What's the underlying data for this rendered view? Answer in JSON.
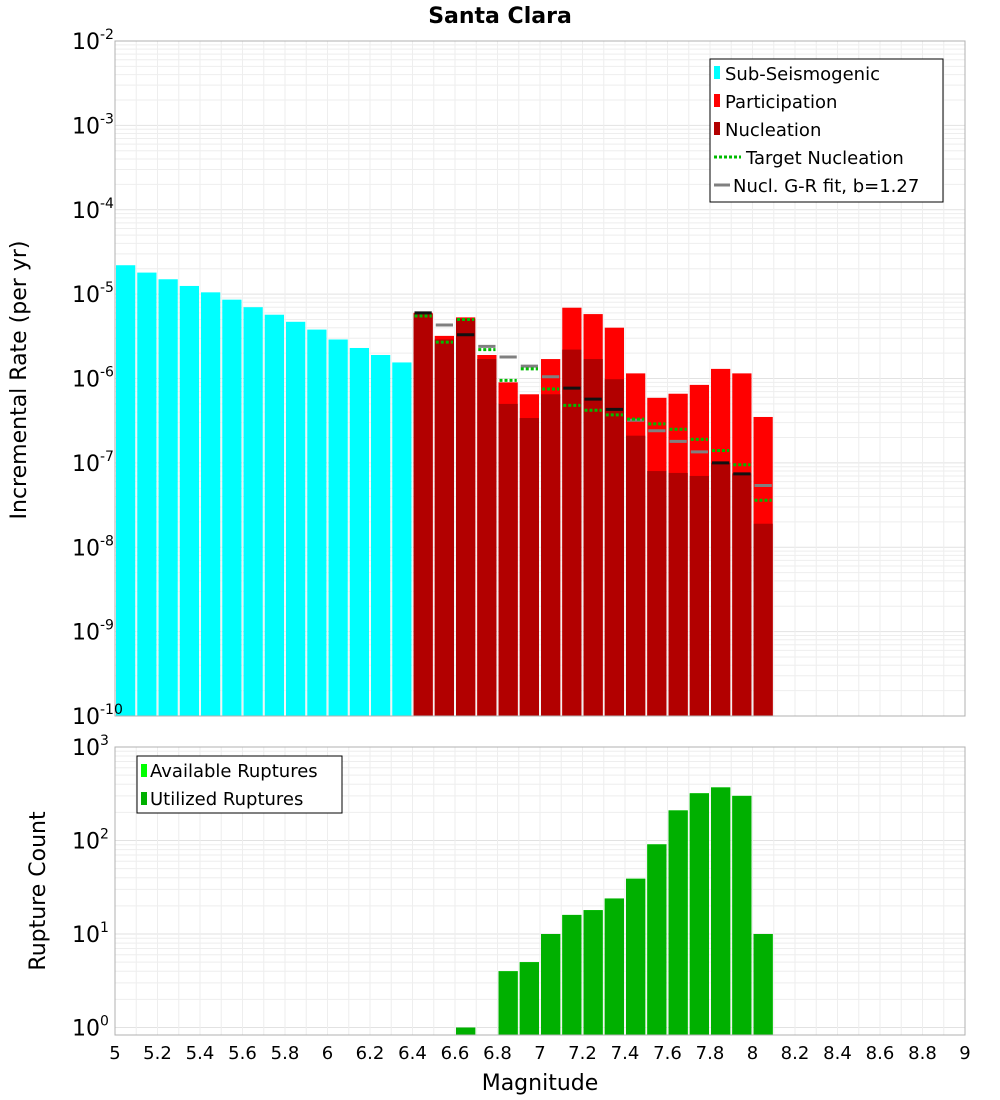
{
  "chart_data": [
    {
      "type": "bar",
      "title": "Santa Clara",
      "ylabel": "Incremental Rate (per yr)",
      "xlabel": "",
      "yscale": "log",
      "ylim_exp": [
        -10,
        -2
      ],
      "xlim": [
        5,
        9
      ],
      "ytick_base": "10",
      "ytick_exps": [
        "-10",
        "-9",
        "-8",
        "-7",
        "-6",
        "-5",
        "-4",
        "-3",
        "-2"
      ],
      "legend_position": "top-right",
      "legend": [
        "Sub-Seismogenic",
        "Participation",
        "Nucleation",
        "Target Nucleation",
        "Nucl. G-R fit, b=1.27"
      ],
      "colors": {
        "sub": "#00ffff",
        "participation": "#ff0000",
        "nucleation": "#b20000",
        "target": "#00bb00",
        "gr": "#808080",
        "bin_marker": "#000000"
      },
      "series": [
        {
          "name": "Sub-Seismogenic",
          "x": [
            5.05,
            5.15,
            5.25,
            5.35,
            5.45,
            5.55,
            5.65,
            5.75,
            5.85,
            5.95,
            6.05,
            6.15,
            6.25,
            6.35
          ],
          "values": [
            2.2e-05,
            1.8e-05,
            1.5e-05,
            1.25e-05,
            1.05e-05,
            8.6e-06,
            7e-06,
            5.7e-06,
            4.7e-06,
            3.8e-06,
            2.9e-06,
            2.3e-06,
            1.9e-06,
            1.55e-06
          ]
        },
        {
          "name": "Participation",
          "x": [
            6.45,
            6.55,
            6.65,
            6.75,
            6.85,
            6.95,
            7.05,
            7.15,
            7.25,
            7.35,
            7.45,
            7.55,
            7.65,
            7.75,
            7.85,
            7.95,
            8.05
          ],
          "values": [
            6e-06,
            3.2e-06,
            5.3e-06,
            1.9e-06,
            9e-07,
            6.5e-07,
            1.7e-06,
            6.9e-06,
            5.8e-06,
            4e-06,
            1.15e-06,
            5.9e-07,
            6.6e-07,
            8.4e-07,
            1.3e-06,
            1.15e-06,
            3.5e-07
          ]
        },
        {
          "name": "Nucleation",
          "x": [
            6.45,
            6.55,
            6.65,
            6.75,
            6.85,
            6.95,
            7.05,
            7.15,
            7.25,
            7.35,
            7.45,
            7.55,
            7.65,
            7.75,
            7.85,
            7.95,
            8.05
          ],
          "values": [
            5.8e-06,
            2.9e-06,
            5.1e-06,
            1.7e-06,
            5e-07,
            3.4e-07,
            6.5e-07,
            2.2e-06,
            1.7e-06,
            9.8e-07,
            2.1e-07,
            8e-08,
            7.6e-08,
            7e-08,
            1e-07,
            7.5e-08,
            1.9e-08
          ]
        },
        {
          "name": "Target Nucleation",
          "x": [
            6.45,
            6.55,
            6.65,
            6.75,
            6.85,
            6.95,
            7.05,
            7.15,
            7.25,
            7.35,
            7.45,
            7.55,
            7.65,
            7.75,
            7.85,
            7.95,
            8.05
          ],
          "values": [
            5.5e-06,
            2.7e-06,
            5e-06,
            2.2e-06,
            9.5e-07,
            1.3e-06,
            7.5e-07,
            4.8e-07,
            4.2e-07,
            3.7e-07,
            3.3e-07,
            2.9e-07,
            2.5e-07,
            1.9e-07,
            1.4e-07,
            9.5e-08,
            3.6e-08
          ]
        },
        {
          "name": "Nucl. G-R fit, b=1.27",
          "x": [
            6.45,
            6.55,
            6.65,
            6.75,
            6.85,
            6.95,
            7.05,
            7.15,
            7.25,
            7.35,
            7.45,
            7.55,
            7.65,
            7.75,
            7.85,
            7.95,
            8.05
          ],
          "values": [
            6e-06,
            4.3e-06,
            3.3e-06,
            2.4e-06,
            1.8e-06,
            1.4e-06,
            1.05e-06,
            7.7e-07,
            5.7e-07,
            4.3e-07,
            3.2e-07,
            2.4e-07,
            1.8e-07,
            1.35e-07,
            1e-07,
            7.4e-08,
            5.4e-08
          ]
        }
      ]
    },
    {
      "type": "bar",
      "title": "",
      "ylabel": "Rupture Count",
      "xlabel": "Magnitude",
      "yscale": "log",
      "ylim_exp": [
        -0.08,
        3
      ],
      "xlim": [
        5,
        9
      ],
      "ytick_base": "10",
      "ytick_exps": [
        "0",
        "1",
        "2",
        "3"
      ],
      "xtick_labels": [
        "5",
        "5.2",
        "5.4",
        "5.6",
        "5.8",
        "6",
        "6.2",
        "6.4",
        "6.6",
        "6.8",
        "7",
        "7.2",
        "7.4",
        "7.6",
        "7.8",
        "8",
        "8.2",
        "8.4",
        "8.6",
        "8.8",
        "9"
      ],
      "legend_position": "top-left",
      "legend": [
        "Available Ruptures",
        "Utilized Ruptures"
      ],
      "colors": {
        "available": "#00ff00",
        "utilized": "#00b000"
      },
      "series": [
        {
          "name": "Available Ruptures",
          "x": [
            6.65,
            6.85,
            6.95,
            7.05,
            7.15,
            7.25,
            7.35,
            7.45,
            7.55,
            7.65,
            7.75,
            7.85,
            7.95,
            8.05
          ],
          "values": [
            1,
            4,
            5,
            10,
            16,
            18,
            24,
            39,
            91,
            210,
            320,
            370,
            300,
            10
          ]
        },
        {
          "name": "Utilized Ruptures",
          "x": [
            6.65,
            6.85,
            6.95,
            7.05,
            7.15,
            7.25,
            7.35,
            7.45,
            7.55,
            7.65,
            7.75,
            7.85,
            7.95,
            8.05
          ],
          "values": [
            1,
            4,
            5,
            10,
            16,
            18,
            24,
            39,
            91,
            210,
            320,
            370,
            300,
            10
          ]
        }
      ]
    }
  ]
}
